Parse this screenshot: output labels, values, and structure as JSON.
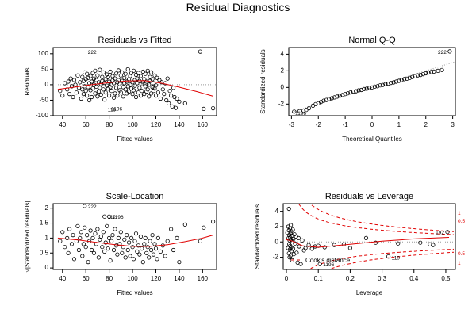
{
  "title": "Residual Diagnostics",
  "chart_data": [
    {
      "type": "scatter",
      "title": "Residuals vs Fitted",
      "xlabel": "Fitted values",
      "ylabel": "Residuals",
      "xlim": [
        32,
        172
      ],
      "ylim": [
        -100,
        120
      ],
      "xticks": [
        40,
        60,
        80,
        100,
        120,
        140,
        160
      ],
      "yticks": [
        -100,
        -50,
        0,
        50,
        100
      ],
      "reference_line": {
        "y": 0,
        "style": "dotted",
        "color": "#999999"
      },
      "smooth": {
        "color": "#e00000",
        "x": [
          36,
          50,
          65,
          80,
          95,
          110,
          125,
          140,
          155,
          169
        ],
        "y": [
          -15,
          -8,
          0,
          7,
          12,
          13,
          5,
          -8,
          -22,
          -37
        ]
      },
      "annotations": [
        {
          "label": "222",
          "x": 59,
          "y": 107
        },
        {
          "label": "119",
          "x": 76,
          "y": -78
        },
        {
          "label": "1196",
          "x": 79,
          "y": -76
        }
      ],
      "points_x": [
        38,
        40,
        42,
        44,
        45,
        46,
        47,
        48,
        49,
        50,
        51,
        52,
        53,
        54,
        55,
        56,
        57,
        57,
        58,
        58,
        59,
        59,
        60,
        60,
        61,
        61,
        62,
        62,
        63,
        63,
        64,
        64,
        65,
        65,
        66,
        66,
        67,
        67,
        68,
        68,
        69,
        69,
        70,
        70,
        71,
        71,
        72,
        72,
        73,
        73,
        74,
        74,
        75,
        75,
        76,
        76,
        77,
        77,
        78,
        78,
        79,
        79,
        80,
        80,
        81,
        81,
        82,
        82,
        83,
        83,
        84,
        84,
        85,
        85,
        86,
        86,
        87,
        87,
        88,
        88,
        89,
        89,
        90,
        90,
        91,
        91,
        92,
        92,
        93,
        93,
        94,
        94,
        95,
        95,
        96,
        96,
        97,
        97,
        98,
        98,
        99,
        99,
        100,
        100,
        101,
        101,
        102,
        102,
        103,
        103,
        104,
        104,
        105,
        105,
        106,
        106,
        107,
        107,
        108,
        108,
        109,
        109,
        110,
        110,
        111,
        111,
        112,
        112,
        113,
        113,
        114,
        114,
        115,
        115,
        116,
        116,
        117,
        117,
        118,
        118,
        119,
        119,
        120,
        120,
        121,
        122,
        123,
        124,
        125,
        126,
        127,
        128,
        129,
        130,
        131,
        132,
        133,
        134,
        135,
        136,
        137,
        138,
        140,
        145,
        158,
        161,
        169,
        59,
        76,
        79
      ],
      "points_y": [
        -20,
        -35,
        5,
        -15,
        10,
        -30,
        20,
        -5,
        -40,
        15,
        0,
        -25,
        30,
        -10,
        8,
        -45,
        25,
        -15,
        12,
        -30,
        40,
        -5,
        -20,
        18,
        35,
        -35,
        -8,
        22,
        -50,
        5,
        28,
        -18,
        10,
        -40,
        38,
        -12,
        0,
        20,
        -28,
        45,
        -6,
        15,
        -38,
        30,
        8,
        -22,
        48,
        -10,
        2,
        -32,
        25,
        12,
        -15,
        40,
        -48,
        6,
        18,
        -25,
        33,
        -3,
        -12,
        24,
        -35,
        10,
        42,
        -8,
        0,
        -20,
        28,
        14,
        -42,
        5,
        20,
        -28,
        36,
        -10,
        8,
        -35,
        46,
        15,
        -18,
        2,
        30,
        -25,
        12,
        40,
        -8,
        -38,
        22,
        5,
        -15,
        35,
        -28,
        10,
        50,
        -5,
        18,
        -22,
        28,
        0,
        -12,
        38,
        -30,
        8,
        45,
        -18,
        15,
        -3,
        32,
        -40,
        20,
        5,
        -25,
        38,
        -10,
        12,
        -35,
        28,
        2,
        -20,
        42,
        8,
        -30,
        18,
        -5,
        35,
        -22,
        10,
        45,
        -15,
        0,
        -38,
        25,
        12,
        -28,
        40,
        -8,
        18,
        -20,
        5,
        30,
        -12,
        -35,
        -2,
        22,
        -25,
        15,
        -45,
        8,
        -15,
        -30,
        5,
        -50,
        20,
        -60,
        -20,
        -35,
        -70,
        -10,
        -40,
        -75,
        -45,
        -55,
        -60,
        107,
        -78,
        -76
      ]
    },
    {
      "type": "scatter",
      "title": "Normal Q-Q",
      "xlabel": "Theoretical Quantiles",
      "ylabel": "Standardized residuals",
      "xlim": [
        -3.1,
        3.1
      ],
      "ylim": [
        -3.4,
        4.8
      ],
      "xticks": [
        -3,
        -2,
        -1,
        0,
        1,
        2,
        3
      ],
      "yticks": [
        -2,
        0,
        2,
        4
      ],
      "reference_line": {
        "from": [
          -3,
          -3
        ],
        "to": [
          3,
          3
        ],
        "style": "dotted",
        "color": "#999999"
      },
      "annotations": [
        {
          "label": "222",
          "x": 2.89,
          "y": 4.33
        },
        {
          "label": "1196",
          "x": -2.98,
          "y": -3.0
        }
      ],
      "points_x": [
        -2.9,
        -2.7,
        -2.55,
        -2.45,
        -2.35,
        -2.2,
        -2.1,
        -2.0,
        -1.9,
        -1.8,
        -1.7,
        -1.6,
        -1.5,
        -1.4,
        -1.3,
        -1.2,
        -1.1,
        -1.0,
        -0.9,
        -0.8,
        -0.7,
        -0.6,
        -0.5,
        -0.4,
        -0.3,
        -0.2,
        -0.1,
        0.0,
        0.1,
        0.2,
        0.3,
        0.4,
        0.5,
        0.6,
        0.7,
        0.8,
        0.9,
        1.0,
        1.1,
        1.2,
        1.3,
        1.4,
        1.5,
        1.6,
        1.7,
        1.8,
        1.9,
        2.0,
        2.1,
        2.2,
        2.3,
        2.45,
        2.6,
        2.89
      ],
      "points_y": [
        -2.9,
        -2.85,
        -2.8,
        -2.7,
        -2.5,
        -2.2,
        -2.0,
        -1.9,
        -1.75,
        -1.6,
        -1.5,
        -1.4,
        -1.3,
        -1.2,
        -1.1,
        -1.0,
        -0.9,
        -0.8,
        -0.7,
        -0.6,
        -0.5,
        -0.45,
        -0.35,
        -0.3,
        -0.2,
        -0.15,
        -0.05,
        0.0,
        0.1,
        0.15,
        0.25,
        0.3,
        0.4,
        0.45,
        0.55,
        0.6,
        0.7,
        0.8,
        0.9,
        1.0,
        1.05,
        1.15,
        1.25,
        1.35,
        1.45,
        1.5,
        1.6,
        1.7,
        1.8,
        1.85,
        1.9,
        2.0,
        2.1,
        4.33
      ]
    },
    {
      "type": "scatter",
      "title": "Scale-Location",
      "xlabel": "Fitted values",
      "ylabel": "√|Standardized residuals|",
      "xlim": [
        32,
        172
      ],
      "ylim": [
        -0.05,
        2.15
      ],
      "xticks": [
        40,
        60,
        80,
        100,
        120,
        140,
        160
      ],
      "yticks": [
        0.0,
        0.5,
        1.0,
        1.5,
        2.0
      ],
      "smooth": {
        "color": "#e00000",
        "x": [
          36,
          55,
          70,
          85,
          100,
          115,
          130,
          145,
          160,
          169
        ],
        "y": [
          1.0,
          0.93,
          0.85,
          0.78,
          0.72,
          0.72,
          0.78,
          0.88,
          1.0,
          1.1
        ]
      },
      "annotations": [
        {
          "label": "222",
          "x": 59,
          "y": 2.07
        },
        {
          "label": "112",
          "x": 76,
          "y": 1.72
        },
        {
          "label": "1196",
          "x": 80,
          "y": 1.72
        }
      ],
      "points_x": [
        38,
        40,
        42,
        44,
        45,
        46,
        48,
        49,
        50,
        52,
        53,
        54,
        55,
        56,
        57,
        58,
        59,
        60,
        61,
        62,
        63,
        64,
        65,
        66,
        67,
        68,
        69,
        70,
        71,
        72,
        73,
        74,
        75,
        76,
        77,
        78,
        79,
        80,
        81,
        82,
        83,
        84,
        85,
        86,
        87,
        88,
        89,
        90,
        91,
        92,
        93,
        94,
        95,
        96,
        97,
        98,
        99,
        100,
        101,
        102,
        103,
        104,
        105,
        106,
        107,
        108,
        109,
        110,
        111,
        112,
        113,
        114,
        115,
        116,
        117,
        118,
        119,
        120,
        121,
        122,
        124,
        126,
        128,
        130,
        133,
        135,
        138,
        140,
        145,
        158,
        161,
        169,
        59,
        76,
        80
      ],
      "points_y": [
        0.9,
        1.2,
        0.7,
        1.0,
        0.5,
        1.3,
        0.8,
        1.1,
        0.3,
        0.9,
        1.4,
        0.6,
        1.0,
        1.2,
        0.4,
        0.8,
        1.35,
        0.7,
        1.1,
        0.2,
        0.9,
        1.25,
        0.6,
        1.0,
        0.5,
        1.15,
        0.8,
        1.3,
        0.35,
        0.95,
        1.05,
        0.7,
        1.2,
        0.55,
        0.85,
        1.4,
        0.65,
        1.0,
        0.25,
        0.9,
        1.1,
        0.6,
        1.3,
        0.75,
        0.45,
        1.0,
        0.8,
        1.2,
        0.5,
        0.7,
        0.95,
        0.35,
        1.1,
        0.6,
        0.85,
        0.4,
        1.0,
        0.7,
        0.3,
        0.9,
        1.15,
        0.55,
        0.75,
        0.45,
        1.05,
        0.65,
        0.2,
        0.8,
        1.0,
        0.5,
        0.7,
        0.35,
        0.9,
        0.6,
        1.1,
        0.45,
        0.8,
        0.65,
        0.3,
        1.0,
        0.55,
        0.75,
        0.4,
        0.9,
        1.3,
        0.6,
        1.0,
        0.2,
        1.45,
        0.9,
        1.35,
        1.55,
        2.07,
        1.72,
        1.72
      ]
    },
    {
      "type": "scatter",
      "title": "Residuals vs Leverage",
      "xlabel": "Leverage",
      "ylabel": "Standardized residuals",
      "xlim": [
        -0.01,
        0.53
      ],
      "ylim": [
        -3.6,
        5.0
      ],
      "xticks": [
        0.0,
        0.1,
        0.2,
        0.3,
        0.4,
        0.5
      ],
      "yticks": [
        -2,
        0,
        2,
        4
      ],
      "reference_line": {
        "y": 0,
        "style": "dotted",
        "color": "#999999"
      },
      "smooth": {
        "color": "#e00000",
        "x": [
          0.0,
          0.02,
          0.05,
          0.1,
          0.2,
          0.3,
          0.4,
          0.51
        ],
        "y": [
          0.3,
          0.1,
          -0.5,
          -0.7,
          -0.3,
          0.1,
          0.4,
          0.6
        ]
      },
      "cooks_distance": {
        "levels": [
          0.5,
          1
        ],
        "label": "Cook's distance",
        "color": "#e00000"
      },
      "contour_labels": [
        "1",
        "0.5",
        "0.5",
        "1"
      ],
      "annotations": [
        {
          "label": "192",
          "x": 0.505,
          "y": 1.3
        },
        {
          "label": "119",
          "x": 0.32,
          "y": -2.0
        },
        {
          "label": "1196",
          "x": 0.105,
          "y": -2.9
        }
      ],
      "points_x": [
        0.003,
        0.005,
        0.006,
        0.007,
        0.008,
        0.008,
        0.009,
        0.009,
        0.01,
        0.01,
        0.011,
        0.011,
        0.012,
        0.012,
        0.013,
        0.013,
        0.014,
        0.014,
        0.015,
        0.015,
        0.016,
        0.017,
        0.018,
        0.019,
        0.02,
        0.021,
        0.022,
        0.023,
        0.025,
        0.027,
        0.03,
        0.032,
        0.035,
        0.038,
        0.04,
        0.045,
        0.05,
        0.055,
        0.06,
        0.07,
        0.08,
        0.09,
        0.1,
        0.12,
        0.15,
        0.18,
        0.2,
        0.25,
        0.28,
        0.32,
        0.35,
        0.42,
        0.45,
        0.46,
        0.505,
        0.008,
        0.105
      ],
      "points_y": [
        1.2,
        -0.8,
        2.0,
        0.5,
        -1.5,
        1.5,
        -0.3,
        0.9,
        -2.0,
        0.2,
        1.8,
        -1.0,
        0.6,
        -0.5,
        1.1,
        -1.8,
        0.3,
        2.2,
        -0.7,
        1.4,
        -1.2,
        0.8,
        -2.4,
        0.1,
        1.6,
        -0.9,
        0.4,
        -1.6,
        1.0,
        -0.2,
        0.7,
        -1.4,
        -2.7,
        0.5,
        -0.6,
        -2.9,
        0.2,
        -1.1,
        -0.8,
        -0.4,
        -0.9,
        -0.6,
        -0.5,
        -0.7,
        -0.4,
        -0.3,
        -0.8,
        0.5,
        -0.1,
        -1.9,
        -0.2,
        -0.1,
        -0.3,
        -0.4,
        1.3,
        4.33,
        -2.9
      ]
    }
  ]
}
